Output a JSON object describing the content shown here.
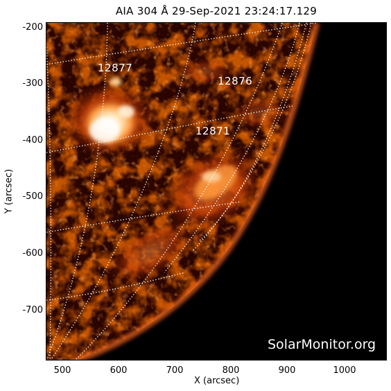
{
  "title": "AIA 304 Å 29-Sep-2021 23:24:17.129",
  "axes": {
    "xlabel": "X (arcsec)",
    "ylabel": "Y (arcsec)",
    "xticks": [
      "500",
      "600",
      "700",
      "800",
      "900",
      "1000"
    ],
    "yticks": [
      "-200",
      "-300",
      "-400",
      "-500",
      "-600",
      "-700"
    ]
  },
  "active_regions": [
    "12877",
    "12876",
    "12871"
  ],
  "watermark": "SolarMonitor.org",
  "colors": {
    "background": "#000000",
    "frame": "#ffffff",
    "grid": "#ffffff"
  }
}
